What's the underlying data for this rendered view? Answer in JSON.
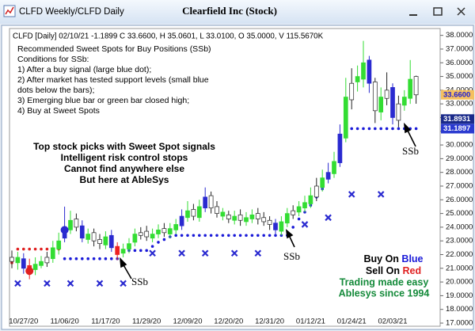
{
  "chart_data": {
    "type": "candlestick",
    "window_title": "CLFD Weekly/CLFD Daily",
    "title": "Clearfield Inc (Stock)",
    "info_line": "CLFD [Daily] 02/10/21 -1.1899 C 33.6600, H 35.0601, L 33.0100, O 35.0000, V 115.5670K",
    "notes": [
      "Recommended Sweet Spots for Buy Positions (SSb)",
      "Conditions for SSb:",
      "1) After a buy signal (large blue dot);",
      "2) After market has tested support levels (small blue",
      "    dots below the bars);",
      "3) Emerging blue bar or green bar closed high;",
      "4) Buy at Sweet Spots"
    ],
    "promo": [
      "Top stock picks with Sweet Spot signals",
      "Intelligent risk control stops",
      "Cannot find anywhere else",
      "But here at AbleSys"
    ],
    "legend": {
      "buy_label": "Buy On",
      "buy_word": "Blue",
      "sell_label": "Sell On",
      "sell_word": "Red",
      "tagline": [
        "Trading made easy",
        "Ablesys since 1994"
      ]
    },
    "annotations": [
      "SSb",
      "SSb",
      "SSb"
    ],
    "categories": [
      null,
      null,
      "10/27/20",
      null,
      null,
      null,
      null,
      null,
      null,
      "11/06/20",
      null,
      null,
      null,
      null,
      null,
      null,
      "11/17/20",
      null,
      null,
      null,
      null,
      null,
      null,
      "11/29/20",
      null,
      null,
      null,
      null,
      null,
      null,
      "12/09/20",
      null,
      null,
      null,
      null,
      null,
      null,
      "12/20/20",
      null,
      null,
      null,
      null,
      null,
      null,
      "12/31/20",
      null,
      null,
      null,
      null,
      null,
      null,
      "01/12/21",
      null,
      null,
      null,
      null,
      null,
      null,
      "01/24/21",
      null,
      null,
      null,
      null,
      null,
      null,
      "02/03/21",
      null,
      null,
      null,
      null
    ],
    "open": [
      21.8,
      21.4,
      21.7,
      21.2,
      20.9,
      21.2,
      21.4,
      21.7,
      22.4,
      23.2,
      23.8,
      24.6,
      24.1,
      23.1,
      23.6,
      23.1,
      22.7,
      23.4,
      22.6,
      22.1,
      22.4,
      22.9,
      23.4,
      23.7,
      23.2,
      23.5,
      23.9,
      23.5,
      23.8,
      24.1,
      24.7,
      25.3,
      24.7,
      25.4,
      26.3,
      25.5,
      25.1,
      24.9,
      24.5,
      24.9,
      24.4,
      24.6,
      25.0,
      24.7,
      24.5,
      24.3,
      23.7,
      24.3,
      24.9,
      25.1,
      25.4,
      25.7,
      26.2,
      26.9,
      27.5,
      27.9,
      28.7,
      30.5,
      33.3,
      34.6,
      34.8,
      36.2,
      34.6,
      32.4,
      33.4,
      34.2,
      31.8,
      32.9,
      33.4,
      35.0
    ],
    "high": [
      22.3,
      22.2,
      22.1,
      21.7,
      21.8,
      21.9,
      22.2,
      23.0,
      23.6,
      25.5,
      25.2,
      25.0,
      24.5,
      23.9,
      23.9,
      23.5,
      23.7,
      23.8,
      22.9,
      22.8,
      23.2,
      23.9,
      24.0,
      24.1,
      23.9,
      24.2,
      24.3,
      24.3,
      24.6,
      25.3,
      25.9,
      25.7,
      26.0,
      26.9,
      26.6,
      25.9,
      25.4,
      25.2,
      25.2,
      25.3,
      25.1,
      25.3,
      25.4,
      25.1,
      24.8,
      24.6,
      24.8,
      25.4,
      25.6,
      25.9,
      26.3,
      26.9,
      27.6,
      28.2,
      28.7,
      29.5,
      31.5,
      34.9,
      35.6,
      35.8,
      37.6,
      36.5,
      34.9,
      34.2,
      35.3,
      34.5,
      33.6,
      34.0,
      36.2,
      35.06
    ],
    "low": [
      21.0,
      20.9,
      20.6,
      20.2,
      20.5,
      21.0,
      21.1,
      21.4,
      22.0,
      22.9,
      23.5,
      23.7,
      22.9,
      22.8,
      22.6,
      22.4,
      22.4,
      22.2,
      21.6,
      21.8,
      22.1,
      22.6,
      23.1,
      23.0,
      22.9,
      23.2,
      23.3,
      23.2,
      23.5,
      23.8,
      24.4,
      24.5,
      24.4,
      25.1,
      25.0,
      24.7,
      24.5,
      24.3,
      24.2,
      24.1,
      24.1,
      24.3,
      24.2,
      24.1,
      23.8,
      23.4,
      23.4,
      24.0,
      24.6,
      24.8,
      25.1,
      25.4,
      25.9,
      26.6,
      27.2,
      27.6,
      28.4,
      30.2,
      32.6,
      33.9,
      34.2,
      33.8,
      31.6,
      31.8,
      32.9,
      31.5,
      31.3,
      32.5,
      33.0,
      33.01
    ],
    "close": [
      21.5,
      21.8,
      21.0,
      20.8,
      21.3,
      21.5,
      21.8,
      22.5,
      23.0,
      24.0,
      24.5,
      24.0,
      23.2,
      23.5,
      23.0,
      22.8,
      23.3,
      22.5,
      22.0,
      22.4,
      22.8,
      23.5,
      23.6,
      23.3,
      23.5,
      23.8,
      23.6,
      23.9,
      24.2,
      24.8,
      25.2,
      24.8,
      25.5,
      26.2,
      25.4,
      25.0,
      24.8,
      24.6,
      24.8,
      24.5,
      24.7,
      24.9,
      24.6,
      24.4,
      24.2,
      23.8,
      24.4,
      25.0,
      25.2,
      25.5,
      25.8,
      26.3,
      27.0,
      27.6,
      28.0,
      28.8,
      30.8,
      33.5,
      34.5,
      35.0,
      36.0,
      34.5,
      32.5,
      33.5,
      34.0,
      32.0,
      33.0,
      33.5,
      34.8,
      33.66
    ],
    "colors": [
      "#ffffff",
      "#33dd33",
      "#2a2ad0",
      "#ee2222",
      "#33dd33",
      "#33dd33",
      "#ffffff",
      "#33dd33",
      "#33dd33",
      "#2a2ad0",
      "#33dd33",
      "#ffffff",
      "#2a2ad0",
      "#33dd33",
      "#ffffff",
      "#ffffff",
      "#33dd33",
      "#2a2ad0",
      "#ee2222",
      "#33dd33",
      "#33dd33",
      "#33dd33",
      "#ffffff",
      "#ffffff",
      "#33dd33",
      "#33dd33",
      "#ffffff",
      "#33dd33",
      "#33dd33",
      "#2a2ad0",
      "#33dd33",
      "#ffffff",
      "#33dd33",
      "#2a2ad0",
      "#ffffff",
      "#ffffff",
      "#33dd33",
      "#ffffff",
      "#33dd33",
      "#ffffff",
      "#33dd33",
      "#33dd33",
      "#ffffff",
      "#ffffff",
      "#ffffff",
      "#2a2ad0",
      "#33dd33",
      "#33dd33",
      "#ffffff",
      "#33dd33",
      "#33dd33",
      "#33dd33",
      "#ffffff",
      "#33dd33",
      "#2a2ad0",
      "#33dd33",
      "#2a2ad0",
      "#33dd33",
      "#ffffff",
      "#33dd33",
      "#33dd33",
      "#2a2ad0",
      "#ffffff",
      "#33dd33",
      "#ffffff",
      "#2a2ad0",
      "#ffffff",
      "#33dd33",
      "#33dd33",
      "#ffffff"
    ],
    "stop_dots": {
      "color": "#1a1ad8",
      "values": [
        null,
        null,
        null,
        null,
        null,
        null,
        null,
        null,
        null,
        21.7,
        21.7,
        21.7,
        21.7,
        21.7,
        21.7,
        21.7,
        21.7,
        21.7,
        21.7,
        22.3,
        22.3,
        22.3,
        22.3,
        22.3,
        22.6,
        22.9,
        23.1,
        23.3,
        23.4,
        23.4,
        23.4,
        23.4,
        23.4,
        23.4,
        23.4,
        23.4,
        23.4,
        23.4,
        23.4,
        23.4,
        23.4,
        23.4,
        23.4,
        23.4,
        23.4,
        23.4,
        23.4,
        23.4,
        24.0,
        24.6,
        25.1,
        25.6,
        26.2,
        26.8,
        27.6,
        28.6,
        29.8,
        30.6,
        31.19,
        31.19,
        31.19,
        31.19,
        31.19,
        31.19,
        31.19,
        31.19,
        31.19,
        31.19,
        31.19,
        31.19
      ]
    },
    "red_dots": {
      "color": "#e02020",
      "x": [
        0,
        1,
        2,
        3,
        4,
        5,
        6,
        7,
        8
      ],
      "values": [
        21.4,
        22.4,
        22.4,
        22.4,
        22.4,
        22.4,
        22.4,
        22.4,
        22.4
      ]
    },
    "x_markers": {
      "color": "#2a2ad0",
      "x": [
        1,
        6,
        10,
        15,
        19,
        24,
        29,
        33,
        38,
        42,
        50,
        54,
        58,
        63
      ],
      "values": [
        19.9,
        19.9,
        19.9,
        19.9,
        19.9,
        22.1,
        22.1,
        22.1,
        22.1,
        22.1,
        24.2,
        24.7,
        26.4,
        26.4
      ]
    },
    "signal_dots": {
      "x": [
        3,
        9
      ],
      "values": [
        20.8,
        23.8
      ],
      "colors": [
        "#e02020",
        "#2a2ad0"
      ]
    },
    "price_tags": [
      {
        "value": 33.66,
        "label": "33.6600",
        "color": "#f5c060",
        "text_color": "#1a1ad8"
      },
      {
        "value": 31.8931,
        "label": "31.8931",
        "color": "#1a2a8a",
        "text_color": "#ffffff"
      },
      {
        "value": 31.1897,
        "label": "31.1897",
        "color": "#2a3ad0",
        "text_color": "#ffffff"
      }
    ],
    "ylim": [
      16.77,
      38.5
    ],
    "yticks": [
      {
        "value": 17,
        "label": "17.0000"
      },
      {
        "value": 18,
        "label": "18.0000"
      },
      {
        "value": 19,
        "label": "19.0000"
      },
      {
        "value": 20,
        "label": "20.0000"
      },
      {
        "value": 21,
        "label": "21.0000"
      },
      {
        "value": 22,
        "label": "22.0000"
      },
      {
        "value": 23,
        "label": "23.0000"
      },
      {
        "value": 24,
        "label": "24.0000"
      },
      {
        "value": 25,
        "label": "25.0000"
      },
      {
        "value": 26,
        "label": "26.0000"
      },
      {
        "value": 27,
        "label": "27.0000"
      },
      {
        "value": 28,
        "label": "28.0000"
      },
      {
        "value": 29,
        "label": "29.0000"
      },
      {
        "value": 30,
        "label": "30.0000"
      },
      {
        "value": 31,
        "label": "31.0000"
      },
      {
        "value": 32,
        "label": "32.0000"
      },
      {
        "value": 33,
        "label": "33.0000"
      },
      {
        "value": 34,
        "label": "34.0000"
      },
      {
        "value": 35,
        "label": "35.0000"
      },
      {
        "value": 36,
        "label": "36.0000"
      },
      {
        "value": 37,
        "label": "37.0000"
      },
      {
        "value": 38,
        "label": "38.0000"
      }
    ]
  }
}
